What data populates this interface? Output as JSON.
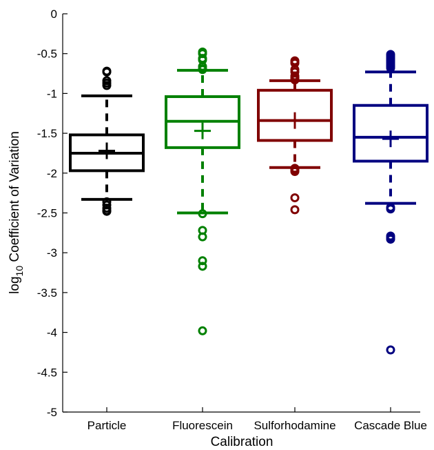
{
  "chart_data": {
    "type": "box",
    "title": "",
    "xlabel": "Calibration",
    "ylabel_prefix": "log",
    "ylabel_subscript": "10",
    "ylabel_suffix": " Coefficient of Variation",
    "ylim": [
      -5,
      0
    ],
    "yticks": [
      0,
      -0.5,
      -1,
      -1.5,
      -2,
      -2.5,
      -3,
      -3.5,
      -4,
      -4.5,
      -5
    ],
    "ytick_labels": [
      "0",
      "-0.5",
      "-1",
      "-1.5",
      "-2",
      "-2.5",
      "-3",
      "-3.5",
      "-4",
      "-4.5",
      "-5"
    ],
    "grid": false,
    "categories": [
      "Particle",
      "Fluorescein",
      "Sulforhodamine",
      "Cascade Blue"
    ],
    "series": [
      {
        "color": "#000000",
        "q1": -1.97,
        "median": -1.75,
        "q3": -1.52,
        "mean": -1.72,
        "whisker_low": -2.33,
        "whisker_high": -1.03,
        "outliers": [
          -0.72,
          -0.73,
          -0.84,
          -0.87,
          -0.9,
          -2.36,
          -2.4,
          -2.44,
          -2.47,
          -2.48
        ]
      },
      {
        "color": "#008000",
        "q1": -1.68,
        "median": -1.35,
        "q3": -1.04,
        "mean": -1.47,
        "whisker_low": -2.5,
        "whisker_high": -0.71,
        "outliers": [
          -0.48,
          -0.5,
          -0.56,
          -0.58,
          -0.66,
          -0.69,
          -0.7,
          -2.51,
          -2.72,
          -2.8,
          -3.1,
          -3.17,
          -3.98
        ]
      },
      {
        "color": "#800000",
        "q1": -1.59,
        "median": -1.34,
        "q3": -0.96,
        "mean": -1.34,
        "whisker_low": -1.93,
        "whisker_high": -0.84,
        "outliers": [
          -0.59,
          -0.61,
          -0.62,
          -0.7,
          -0.73,
          -0.78,
          -0.8,
          -0.81,
          -0.83,
          -1.94,
          -1.95,
          -1.97,
          -1.98,
          -2.31,
          -2.46
        ]
      },
      {
        "color": "#000080",
        "q1": -1.85,
        "median": -1.55,
        "q3": -1.15,
        "mean": -1.57,
        "whisker_low": -2.38,
        "whisker_high": -0.73,
        "outliers": [
          -0.51,
          -0.53,
          -0.55,
          -0.57,
          -0.59,
          -0.61,
          -0.63,
          -0.65,
          -0.66,
          -0.68,
          -2.43,
          -2.45,
          -2.79,
          -2.81,
          -2.83,
          -4.22
        ]
      }
    ]
  }
}
